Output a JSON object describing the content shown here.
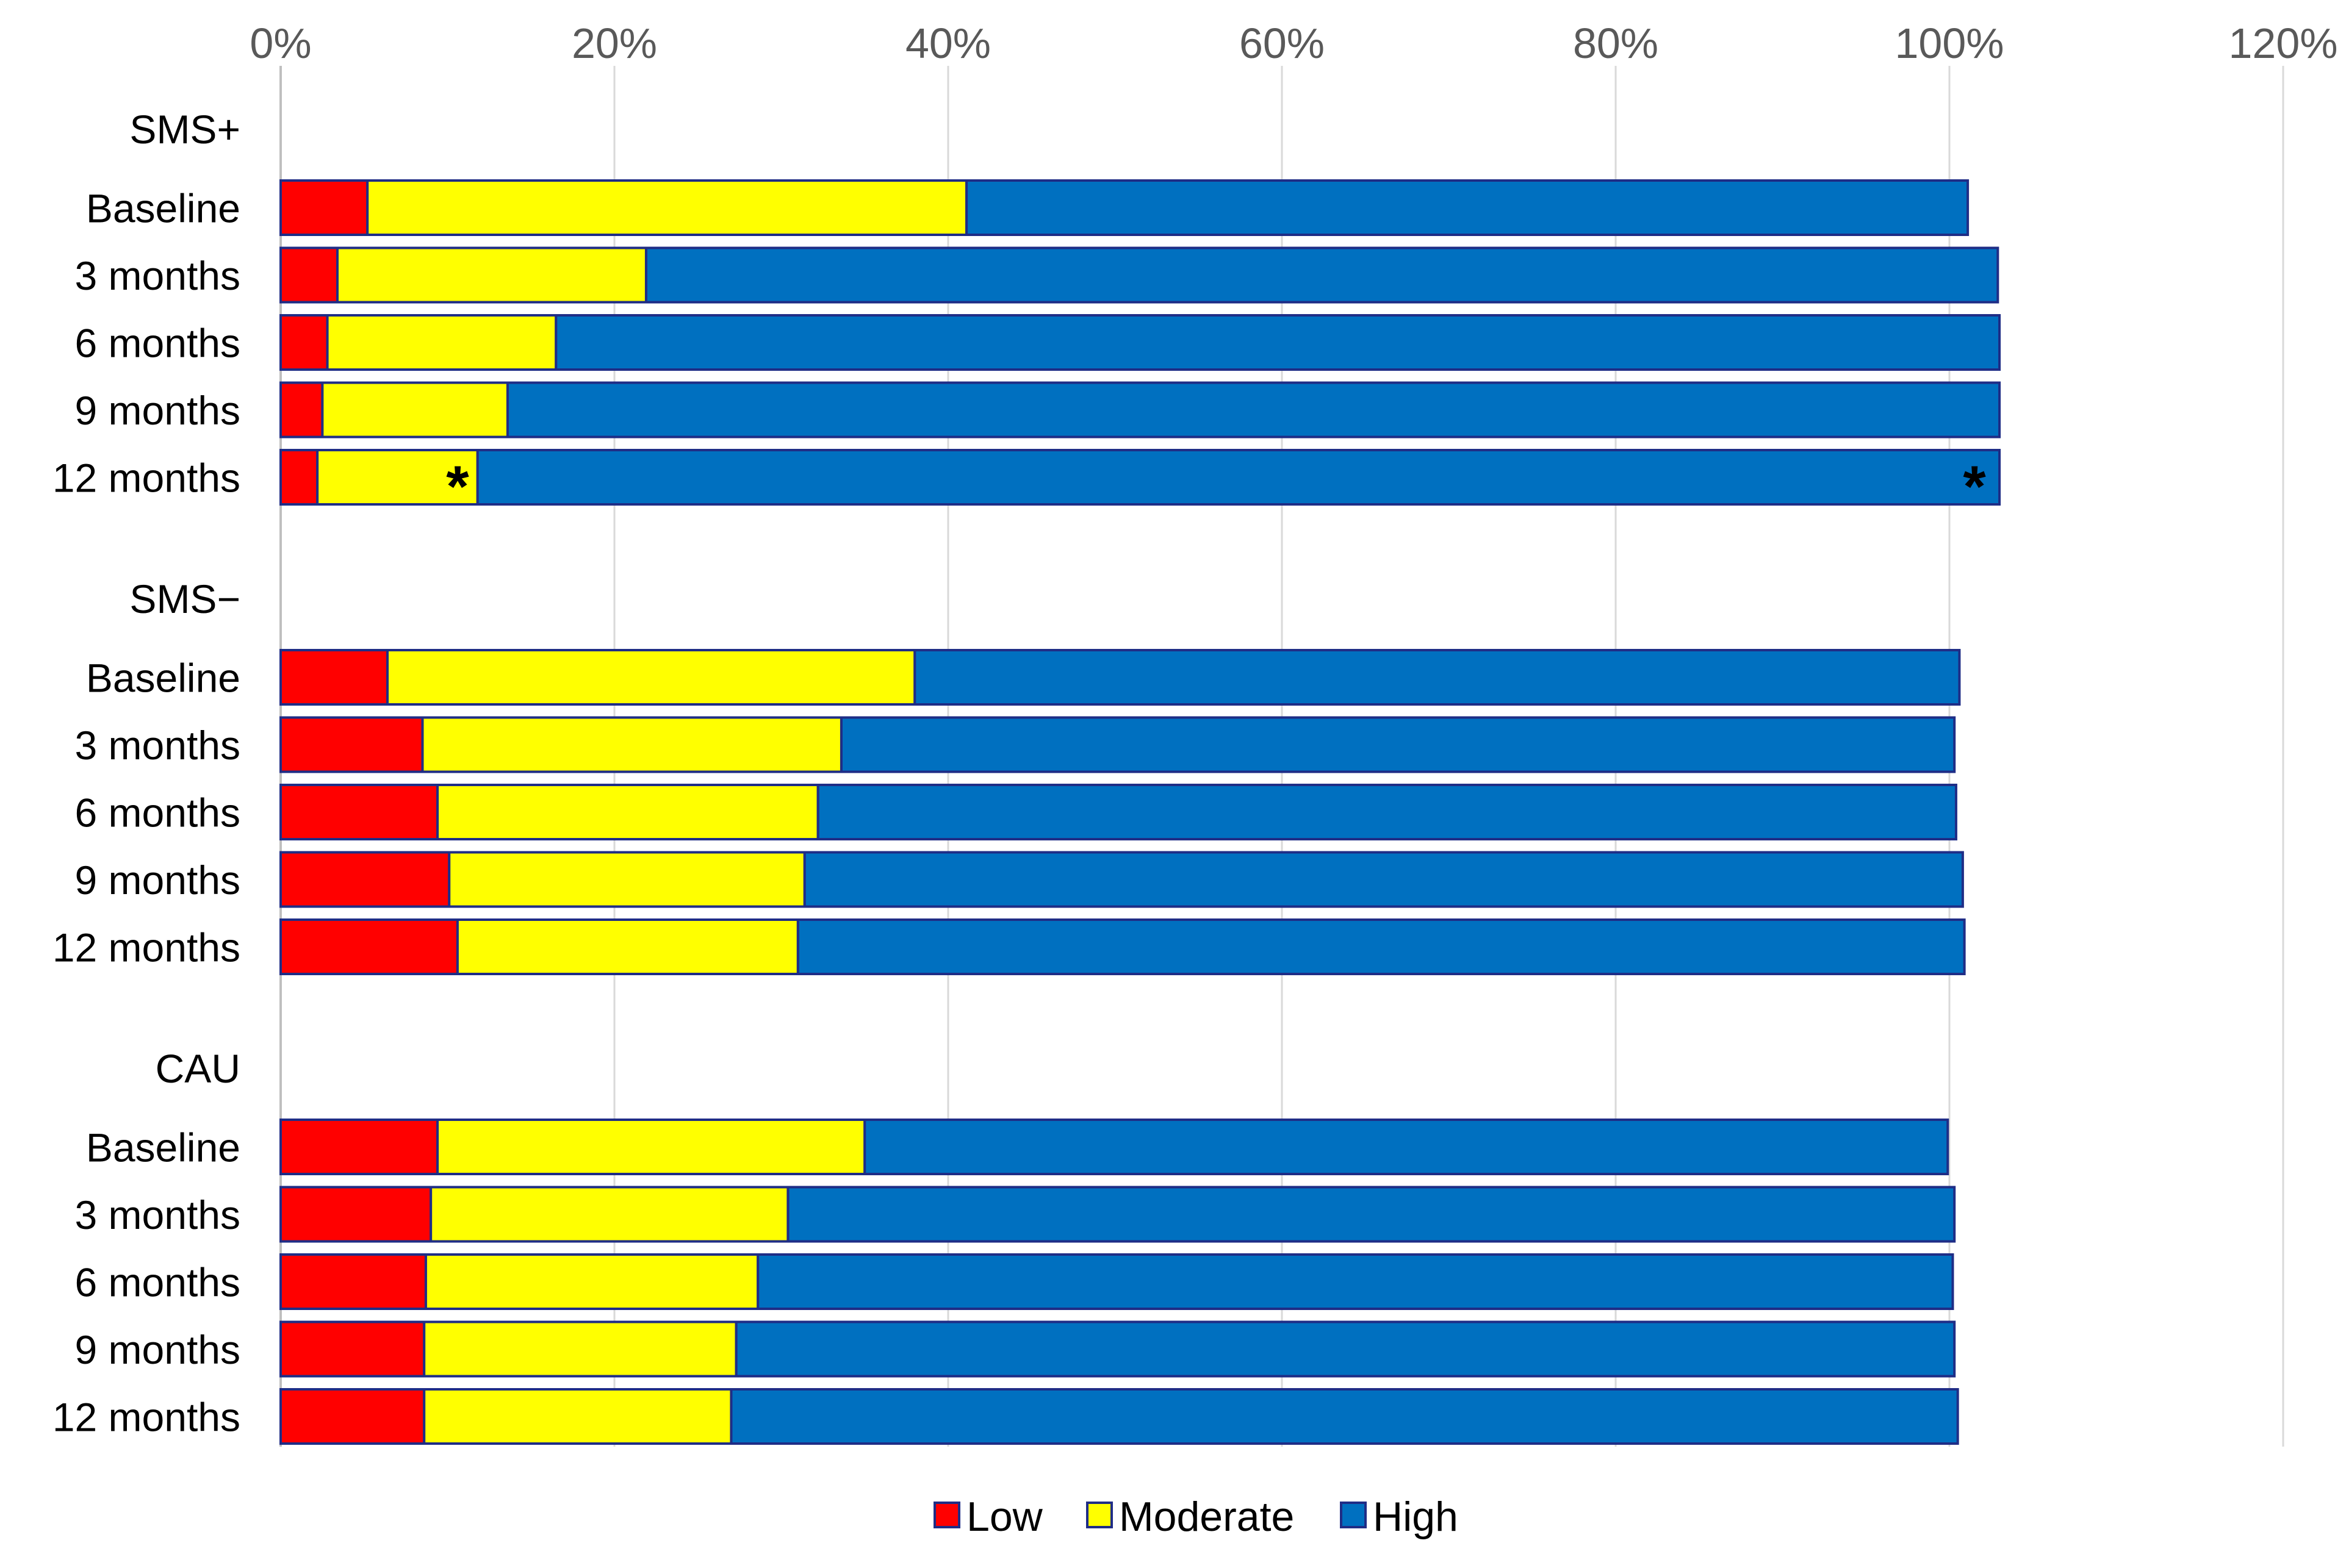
{
  "chart_data": {
    "type": "bar",
    "orientation": "horizontal",
    "stacked": true,
    "title": "",
    "xlabel": "",
    "ylabel": "",
    "xlim": [
      0,
      120
    ],
    "x_ticks": [
      0,
      20,
      40,
      60,
      80,
      100,
      120
    ],
    "x_tick_labels": [
      "0%",
      "20%",
      "40%",
      "60%",
      "80%",
      "100%",
      "120%"
    ],
    "grid": "vertical",
    "legend_position": "bottom",
    "series": [
      {
        "name": "Low",
        "color": "#ff0000"
      },
      {
        "name": "Moderate",
        "color": "#ffff00"
      },
      {
        "name": "High",
        "color": "#0070c0"
      }
    ],
    "groups": [
      {
        "name": "SMS+",
        "rows": [
          {
            "label": "Baseline",
            "values": [
              5.2,
              35.9,
              60.0
            ]
          },
          {
            "label": "3 months",
            "values": [
              3.4,
              18.5,
              81.0
            ]
          },
          {
            "label": "6 months",
            "values": [
              2.8,
              13.7,
              86.5
            ]
          },
          {
            "label": "9 months",
            "values": [
              2.5,
              11.1,
              89.4
            ]
          },
          {
            "label": "12 months",
            "values": [
              2.2,
              9.6,
              91.2
            ],
            "annotations": [
              "*",
              "*"
            ]
          }
        ]
      },
      {
        "name": "SMS−",
        "rows": [
          {
            "label": "Baseline",
            "values": [
              6.4,
              31.6,
              62.6
            ]
          },
          {
            "label": "3 months",
            "values": [
              8.5,
              25.1,
              66.7
            ]
          },
          {
            "label": "6 months",
            "values": [
              9.4,
              22.8,
              68.2
            ]
          },
          {
            "label": "9 months",
            "values": [
              10.1,
              21.3,
              69.4
            ]
          },
          {
            "label": "12 months",
            "values": [
              10.6,
              20.4,
              69.9
            ]
          }
        ]
      },
      {
        "name": "CAU",
        "rows": [
          {
            "label": "Baseline",
            "values": [
              9.4,
              25.6,
              64.9
            ]
          },
          {
            "label": "3 months",
            "values": [
              9.0,
              21.4,
              69.9
            ]
          },
          {
            "label": "6 months",
            "values": [
              8.7,
              19.9,
              71.6
            ]
          },
          {
            "label": "9 months",
            "values": [
              8.6,
              18.7,
              73.0
            ]
          },
          {
            "label": "12 months",
            "values": [
              8.6,
              18.4,
              73.5
            ]
          }
        ]
      }
    ],
    "annotation_text": "*"
  }
}
